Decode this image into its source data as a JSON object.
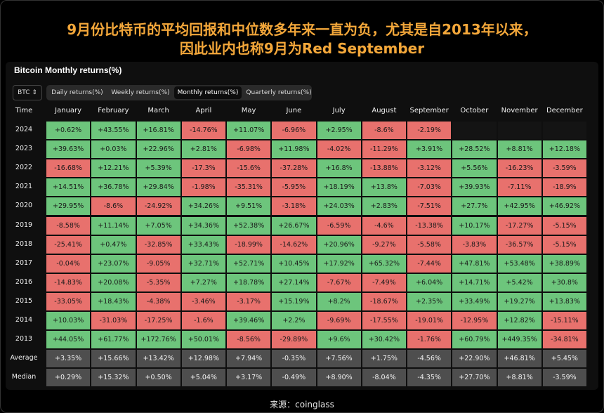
{
  "header": {
    "title_lines": [
      "9月份比特币的平均回报和中位数多年来一直为负，尤其是自2013年以来，",
      "因此业内也称9月为Red September"
    ]
  },
  "card": {
    "title": "Bitcoin Monthly returns(%)",
    "selector": "BTC",
    "tabs": [
      "Daily returns(%)",
      "Weekly returns(%)",
      "Monthly returns(%)",
      "Quarterly returns(%)"
    ],
    "active_tab": 2
  },
  "table": {
    "columns": [
      "Time",
      "January",
      "February",
      "March",
      "April",
      "May",
      "June",
      "July",
      "August",
      "September",
      "October",
      "November",
      "December"
    ],
    "colors": {
      "positive": "#6dc57c",
      "negative": "#e8716d",
      "summary": "#4e4e4e",
      "empty": "#141414"
    },
    "rows": [
      {
        "label": "2024",
        "cells": [
          "+0.62%",
          "+43.55%",
          "+16.81%",
          "-14.76%",
          "+11.07%",
          "-6.96%",
          "+2.95%",
          "-8.6%",
          "-2.19%",
          null,
          null,
          null
        ]
      },
      {
        "label": "2023",
        "cells": [
          "+39.63%",
          "+0.03%",
          "+22.96%",
          "+2.81%",
          "-6.98%",
          "+11.98%",
          "-4.02%",
          "-11.29%",
          "+3.91%",
          "+28.52%",
          "+8.81%",
          "+12.18%"
        ]
      },
      {
        "label": "2022",
        "cells": [
          "-16.68%",
          "+12.21%",
          "+5.39%",
          "-17.3%",
          "-15.6%",
          "-37.28%",
          "+16.8%",
          "-13.88%",
          "-3.12%",
          "+5.56%",
          "-16.23%",
          "-3.59%"
        ]
      },
      {
        "label": "2021",
        "cells": [
          "+14.51%",
          "+36.78%",
          "+29.84%",
          "-1.98%",
          "-35.31%",
          "-5.95%",
          "+18.19%",
          "+13.8%",
          "-7.03%",
          "+39.93%",
          "-7.11%",
          "-18.9%"
        ]
      },
      {
        "label": "2020",
        "cells": [
          "+29.95%",
          "-8.6%",
          "-24.92%",
          "+34.26%",
          "+9.51%",
          "-3.18%",
          "+24.03%",
          "+2.83%",
          "-7.51%",
          "+27.7%",
          "+42.95%",
          "+46.92%"
        ]
      },
      {
        "label": "2019",
        "cells": [
          "-8.58%",
          "+11.14%",
          "+7.05%",
          "+34.36%",
          "+52.38%",
          "+26.67%",
          "-6.59%",
          "-4.6%",
          "-13.38%",
          "+10.17%",
          "-17.27%",
          "-5.15%"
        ]
      },
      {
        "label": "2018",
        "cells": [
          "-25.41%",
          "+0.47%",
          "-32.85%",
          "+33.43%",
          "-18.99%",
          "-14.62%",
          "+20.96%",
          "-9.27%",
          "-5.58%",
          "-3.83%",
          "-36.57%",
          "-5.15%"
        ]
      },
      {
        "label": "2017",
        "cells": [
          "-0.04%",
          "+23.07%",
          "-9.05%",
          "+32.71%",
          "+52.71%",
          "+10.45%",
          "+17.92%",
          "+65.32%",
          "-7.44%",
          "+47.81%",
          "+53.48%",
          "+38.89%"
        ]
      },
      {
        "label": "2016",
        "cells": [
          "-14.83%",
          "+20.08%",
          "-5.35%",
          "+7.27%",
          "+18.78%",
          "+27.14%",
          "-7.67%",
          "-7.49%",
          "+6.04%",
          "+14.71%",
          "+5.42%",
          "+30.8%"
        ]
      },
      {
        "label": "2015",
        "cells": [
          "-33.05%",
          "+18.43%",
          "-4.38%",
          "-3.46%",
          "-3.17%",
          "+15.19%",
          "+8.2%",
          "-18.67%",
          "+2.35%",
          "+33.49%",
          "+19.27%",
          "+13.83%"
        ]
      },
      {
        "label": "2014",
        "cells": [
          "+10.03%",
          "-31.03%",
          "-17.25%",
          "-1.6%",
          "+39.46%",
          "+2.2%",
          "-9.69%",
          "-17.55%",
          "-19.01%",
          "-12.95%",
          "+12.82%",
          "-15.11%"
        ]
      },
      {
        "label": "2013",
        "cells": [
          "+44.05%",
          "+61.77%",
          "+172.76%",
          "+50.01%",
          "-8.56%",
          "-29.89%",
          "+9.6%",
          "+30.42%",
          "-1.76%",
          "+60.79%",
          "+449.35%",
          "-34.81%"
        ]
      }
    ],
    "summary_rows": [
      {
        "label": "Average",
        "cells": [
          "+3.35%",
          "+15.66%",
          "+13.42%",
          "+12.98%",
          "+7.94%",
          "-0.35%",
          "+7.56%",
          "+1.75%",
          "-4.56%",
          "+22.90%",
          "+46.81%",
          "+5.45%"
        ]
      },
      {
        "label": "Median",
        "cells": [
          "+0.29%",
          "+15.32%",
          "+0.50%",
          "+5.04%",
          "+3.17%",
          "-0.49%",
          "+8.90%",
          "-8.04%",
          "-4.35%",
          "+27.70%",
          "+8.81%",
          "-3.59%"
        ]
      }
    ]
  },
  "footer": {
    "source": "来源：coinglass"
  }
}
